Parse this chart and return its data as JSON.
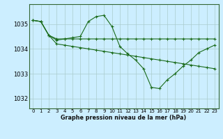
{
  "title": "Graphe pression niveau de la mer (hPa)",
  "bg_color": "#cceeff",
  "grid_color": "#aacccc",
  "line_color": "#1a6b1a",
  "x_ticks": [
    0,
    1,
    2,
    3,
    4,
    5,
    6,
    7,
    8,
    9,
    10,
    11,
    12,
    13,
    14,
    15,
    16,
    17,
    18,
    19,
    20,
    21,
    22,
    23
  ],
  "ylim": [
    1031.6,
    1035.8
  ],
  "yticks": [
    1032,
    1033,
    1034,
    1035
  ],
  "line1": [
    1035.15,
    1035.1,
    1034.55,
    1034.2,
    1034.15,
    1034.1,
    1034.05,
    1034.0,
    1033.95,
    1033.9,
    1033.85,
    1033.8,
    1033.75,
    1033.7,
    1033.65,
    1033.6,
    1033.55,
    1033.5,
    1033.45,
    1033.4,
    1033.35,
    1033.3,
    1033.25,
    1033.2
  ],
  "line2": [
    1035.15,
    1035.1,
    1034.55,
    1034.35,
    1034.4,
    1034.45,
    1034.5,
    1035.1,
    1035.3,
    1035.35,
    1034.9,
    1034.1,
    1033.8,
    1033.55,
    1033.2,
    1032.45,
    1032.4,
    1032.75,
    1033.0,
    1033.3,
    1033.55,
    1033.85,
    1034.0,
    1034.15
  ],
  "line3": [
    1035.15,
    1035.1,
    1034.55,
    1034.4,
    1034.4,
    1034.4,
    1034.4,
    1034.4,
    1034.4,
    1034.4,
    1034.4,
    1034.4,
    1034.4,
    1034.4,
    1034.4,
    1034.4,
    1034.4,
    1034.4,
    1034.4,
    1034.4,
    1034.4,
    1034.4,
    1034.4,
    1034.4
  ]
}
